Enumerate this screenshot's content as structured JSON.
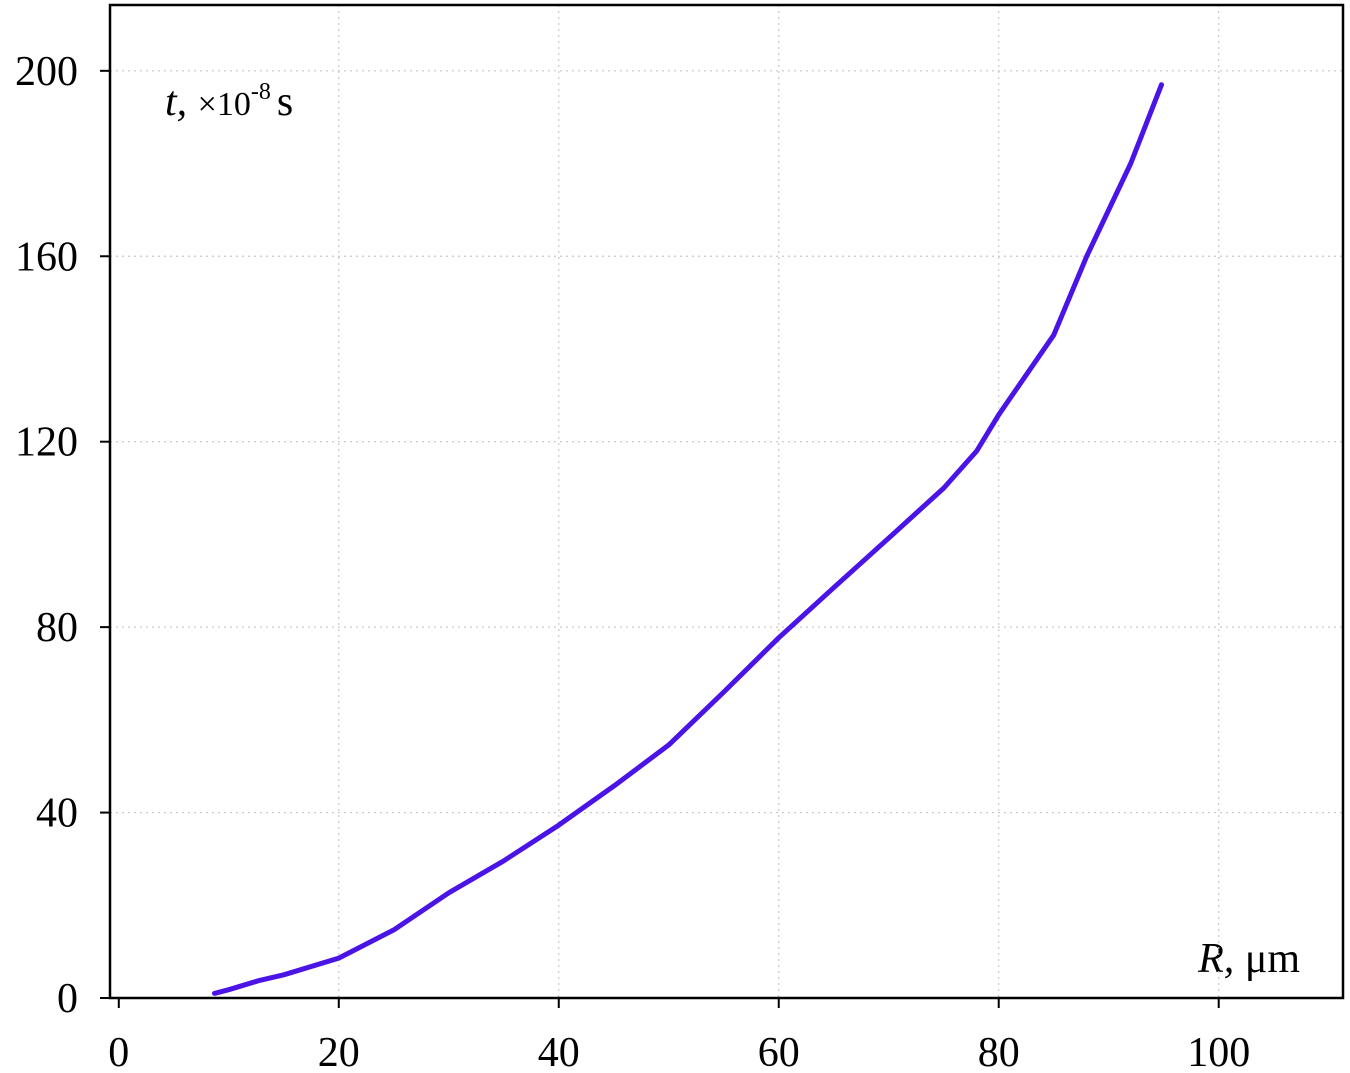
{
  "chart_data": {
    "type": "line",
    "x_label": {
      "symbol": "R,",
      "unit": "μm"
    },
    "y_label": {
      "symbol": "t,",
      "unit": "×10",
      "exponent": "-8",
      "suffix": "s"
    },
    "x": [
      8.7,
      10,
      12.8,
      15,
      20,
      25,
      30,
      35,
      40,
      45,
      50,
      55,
      60,
      65,
      70,
      75,
      78,
      80,
      85,
      88,
      92,
      94.8
    ],
    "values": [
      1,
      1.8,
      3.8,
      5,
      8.6,
      14.7,
      22.7,
      29.6,
      37.3,
      45.7,
      54.6,
      66,
      77.7,
      88.5,
      99.2,
      110,
      118,
      125.8,
      143,
      160,
      180,
      197
    ],
    "color": "#4b14e6",
    "xlim": [
      -0.8,
      111.3
    ],
    "xticks": [
      0,
      20,
      40,
      60,
      80,
      100
    ],
    "ylim": [
      0,
      214.2
    ],
    "yticks": [
      0,
      40,
      80,
      120,
      160,
      200
    ],
    "grid": true
  }
}
